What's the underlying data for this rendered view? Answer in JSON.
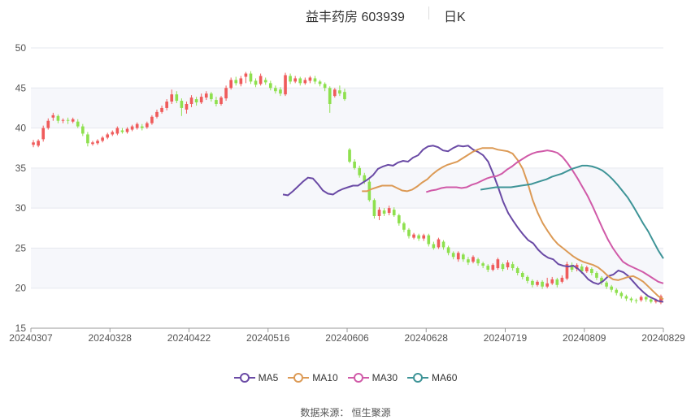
{
  "header": {
    "title": "益丰药房 603939",
    "period": "日K"
  },
  "source": "数据来源： 恒生聚源",
  "chart_data": {
    "type": "candlestick",
    "ylim": [
      15,
      50
    ],
    "yticks": [
      15,
      20,
      25,
      30,
      35,
      40,
      45,
      50
    ],
    "xticks": [
      "20240307",
      "20240328",
      "20240422",
      "20240516",
      "20240606",
      "20240628",
      "20240719",
      "20240809",
      "20240829"
    ],
    "colors": {
      "up": "#ef5b5b",
      "down": "#8ee04e",
      "ma5": "#6a4aa5",
      "ma10": "#dc9a55",
      "ma30": "#d05aa8",
      "ma60": "#3e9497"
    },
    "candles": [
      {
        "o": 37.9,
        "c": 38.2,
        "h": 38.5,
        "l": 37.6
      },
      {
        "o": 37.8,
        "c": 38.4,
        "h": 38.6,
        "l": 37.6
      },
      {
        "o": 38.6,
        "c": 40.0,
        "h": 40.3,
        "l": 38.3
      },
      {
        "o": 40.0,
        "c": 40.9,
        "h": 41.2,
        "l": 39.8
      },
      {
        "o": 41.3,
        "c": 41.6,
        "h": 41.9,
        "l": 40.9
      },
      {
        "o": 41.5,
        "c": 40.9,
        "h": 41.7,
        "l": 40.6
      },
      {
        "o": 40.9,
        "c": 41.0,
        "h": 41.2,
        "l": 40.6
      },
      {
        "o": 41.0,
        "c": 40.9,
        "h": 41.3,
        "l": 40.5
      },
      {
        "o": 40.8,
        "c": 41.1,
        "h": 41.3,
        "l": 40.6
      },
      {
        "o": 40.8,
        "c": 40.2,
        "h": 41.1,
        "l": 40.0
      },
      {
        "o": 40.2,
        "c": 39.3,
        "h": 40.5,
        "l": 39.0
      },
      {
        "o": 39.2,
        "c": 38.1,
        "h": 39.5,
        "l": 37.7
      },
      {
        "o": 38.0,
        "c": 38.2,
        "h": 38.4,
        "l": 37.8
      },
      {
        "o": 38.1,
        "c": 38.4,
        "h": 38.6,
        "l": 37.9
      },
      {
        "o": 38.4,
        "c": 38.8,
        "h": 39.0,
        "l": 38.2
      },
      {
        "o": 38.8,
        "c": 39.2,
        "h": 39.4,
        "l": 38.6
      },
      {
        "o": 39.2,
        "c": 39.5,
        "h": 39.7,
        "l": 39.0
      },
      {
        "o": 39.3,
        "c": 40.0,
        "h": 40.2,
        "l": 39.1
      },
      {
        "o": 39.7,
        "c": 39.5,
        "h": 40.0,
        "l": 39.3
      },
      {
        "o": 39.5,
        "c": 39.9,
        "h": 40.1,
        "l": 39.3
      },
      {
        "o": 39.8,
        "c": 40.2,
        "h": 40.4,
        "l": 39.6
      },
      {
        "o": 40.0,
        "c": 40.5,
        "h": 40.7,
        "l": 39.8
      },
      {
        "o": 40.2,
        "c": 40.0,
        "h": 40.5,
        "l": 39.7
      },
      {
        "o": 40.1,
        "c": 40.6,
        "h": 40.8,
        "l": 39.9
      },
      {
        "o": 40.6,
        "c": 41.4,
        "h": 41.6,
        "l": 40.4
      },
      {
        "o": 41.4,
        "c": 42.0,
        "h": 42.3,
        "l": 41.2
      },
      {
        "o": 42.0,
        "c": 42.5,
        "h": 42.8,
        "l": 41.8
      },
      {
        "o": 42.5,
        "c": 43.3,
        "h": 43.6,
        "l": 42.2
      },
      {
        "o": 43.3,
        "c": 44.2,
        "h": 44.8,
        "l": 43.0
      },
      {
        "o": 44.2,
        "c": 43.4,
        "h": 44.6,
        "l": 43.1
      },
      {
        "o": 43.4,
        "c": 42.5,
        "h": 43.7,
        "l": 41.5
      },
      {
        "o": 42.3,
        "c": 43.0,
        "h": 43.3,
        "l": 41.8
      },
      {
        "o": 43.0,
        "c": 43.8,
        "h": 44.1,
        "l": 42.6
      },
      {
        "o": 43.6,
        "c": 43.2,
        "h": 43.9,
        "l": 42.8
      },
      {
        "o": 43.2,
        "c": 43.9,
        "h": 44.3,
        "l": 43.0
      },
      {
        "o": 43.8,
        "c": 44.3,
        "h": 44.6,
        "l": 43.5
      },
      {
        "o": 44.3,
        "c": 43.6,
        "h": 44.5,
        "l": 43.3
      },
      {
        "o": 43.5,
        "c": 43.0,
        "h": 43.9,
        "l": 42.7
      },
      {
        "o": 43.0,
        "c": 43.8,
        "h": 44.0,
        "l": 42.8
      },
      {
        "o": 43.7,
        "c": 45.0,
        "h": 45.3,
        "l": 43.4
      },
      {
        "o": 45.0,
        "c": 46.0,
        "h": 46.3,
        "l": 44.8
      },
      {
        "o": 46.0,
        "c": 45.6,
        "h": 46.4,
        "l": 45.3
      },
      {
        "o": 45.5,
        "c": 46.2,
        "h": 46.5,
        "l": 45.2
      },
      {
        "o": 46.4,
        "c": 46.8,
        "h": 47.0,
        "l": 45.6
      },
      {
        "o": 46.8,
        "c": 45.8,
        "h": 47.1,
        "l": 45.5
      },
      {
        "o": 45.9,
        "c": 45.4,
        "h": 46.2,
        "l": 45.1
      },
      {
        "o": 45.5,
        "c": 46.5,
        "h": 46.8,
        "l": 45.3
      },
      {
        "o": 46.0,
        "c": 45.7,
        "h": 46.3,
        "l": 45.4
      },
      {
        "o": 45.6,
        "c": 45.0,
        "h": 45.9,
        "l": 44.7
      },
      {
        "o": 45.0,
        "c": 44.6,
        "h": 45.3,
        "l": 44.3
      },
      {
        "o": 44.8,
        "c": 44.3,
        "h": 45.1,
        "l": 44.0
      },
      {
        "o": 44.2,
        "c": 46.6,
        "h": 46.9,
        "l": 44.0
      },
      {
        "o": 46.5,
        "c": 45.8,
        "h": 46.8,
        "l": 45.5
      },
      {
        "o": 45.8,
        "c": 46.2,
        "h": 46.5,
        "l": 45.6
      },
      {
        "o": 46.2,
        "c": 45.6,
        "h": 46.4,
        "l": 45.3
      },
      {
        "o": 45.6,
        "c": 46.0,
        "h": 46.3,
        "l": 45.4
      },
      {
        "o": 45.9,
        "c": 46.3,
        "h": 46.5,
        "l": 45.6
      },
      {
        "o": 46.2,
        "c": 45.8,
        "h": 46.5,
        "l": 45.5
      },
      {
        "o": 45.8,
        "c": 45.5,
        "h": 46.0,
        "l": 45.2
      },
      {
        "o": 45.5,
        "c": 45.0,
        "h": 45.7,
        "l": 44.6
      },
      {
        "o": 45.0,
        "c": 43.0,
        "h": 45.2,
        "l": 41.9
      },
      {
        "o": 44.0,
        "c": 44.8,
        "h": 45.0,
        "l": 43.8
      },
      {
        "o": 44.7,
        "c": 44.3,
        "h": 45.3,
        "l": 44.0
      },
      {
        "o": 44.5,
        "c": 43.6,
        "h": 44.9,
        "l": 43.4
      },
      {
        "o": 37.3,
        "c": 35.8,
        "h": 37.5,
        "l": 35.6
      },
      {
        "o": 35.8,
        "c": 35.0,
        "h": 36.1,
        "l": 34.8
      },
      {
        "o": 35.0,
        "c": 34.1,
        "h": 35.3,
        "l": 33.8
      },
      {
        "o": 34.1,
        "c": 33.3,
        "h": 34.4,
        "l": 33.0
      },
      {
        "o": 33.3,
        "c": 31.0,
        "h": 33.6,
        "l": 30.8
      },
      {
        "o": 31.0,
        "c": 29.0,
        "h": 31.2,
        "l": 28.7
      },
      {
        "o": 29.0,
        "c": 29.8,
        "h": 30.1,
        "l": 28.5
      },
      {
        "o": 29.7,
        "c": 29.3,
        "h": 30.0,
        "l": 29.0
      },
      {
        "o": 29.4,
        "c": 30.0,
        "h": 30.3,
        "l": 29.1
      },
      {
        "o": 29.8,
        "c": 29.1,
        "h": 30.1,
        "l": 28.9
      },
      {
        "o": 29.1,
        "c": 28.1,
        "h": 29.3,
        "l": 27.8
      },
      {
        "o": 28.1,
        "c": 27.3,
        "h": 28.3,
        "l": 27.0
      },
      {
        "o": 27.3,
        "c": 26.5,
        "h": 27.5,
        "l": 26.2
      },
      {
        "o": 26.3,
        "c": 26.7,
        "h": 26.9,
        "l": 26.1
      },
      {
        "o": 26.6,
        "c": 26.2,
        "h": 26.8,
        "l": 25.9
      },
      {
        "o": 26.2,
        "c": 26.6,
        "h": 26.8,
        "l": 25.9
      },
      {
        "o": 26.6,
        "c": 25.5,
        "h": 26.8,
        "l": 25.2
      },
      {
        "o": 25.5,
        "c": 25.0,
        "h": 25.8,
        "l": 24.8
      },
      {
        "o": 25.1,
        "c": 26.1,
        "h": 26.3,
        "l": 24.9
      },
      {
        "o": 25.8,
        "c": 25.1,
        "h": 26.0,
        "l": 24.8
      },
      {
        "o": 25.1,
        "c": 24.4,
        "h": 25.3,
        "l": 24.1
      },
      {
        "o": 24.4,
        "c": 23.9,
        "h": 24.6,
        "l": 23.6
      },
      {
        "o": 23.6,
        "c": 24.4,
        "h": 24.6,
        "l": 23.3
      },
      {
        "o": 24.2,
        "c": 23.6,
        "h": 24.4,
        "l": 23.3
      },
      {
        "o": 23.6,
        "c": 23.2,
        "h": 23.9,
        "l": 22.9
      },
      {
        "o": 23.3,
        "c": 23.9,
        "h": 24.1,
        "l": 23.1
      },
      {
        "o": 23.6,
        "c": 23.1,
        "h": 23.8,
        "l": 22.8
      },
      {
        "o": 23.1,
        "c": 22.8,
        "h": 23.3,
        "l": 22.5
      },
      {
        "o": 22.8,
        "c": 22.3,
        "h": 23.0,
        "l": 22.0
      },
      {
        "o": 22.3,
        "c": 22.9,
        "h": 23.1,
        "l": 22.1
      },
      {
        "o": 22.5,
        "c": 23.6,
        "h": 23.8,
        "l": 22.3
      },
      {
        "o": 23.0,
        "c": 22.4,
        "h": 23.2,
        "l": 22.1
      },
      {
        "o": 22.6,
        "c": 23.2,
        "h": 23.5,
        "l": 22.3
      },
      {
        "o": 23.0,
        "c": 22.5,
        "h": 23.3,
        "l": 22.2
      },
      {
        "o": 22.5,
        "c": 21.9,
        "h": 22.7,
        "l": 21.6
      },
      {
        "o": 21.9,
        "c": 21.4,
        "h": 22.1,
        "l": 21.1
      },
      {
        "o": 21.4,
        "c": 20.9,
        "h": 21.6,
        "l": 20.6
      },
      {
        "o": 20.9,
        "c": 20.4,
        "h": 21.1,
        "l": 20.1
      },
      {
        "o": 20.4,
        "c": 20.8,
        "h": 21.0,
        "l": 20.2
      },
      {
        "o": 20.8,
        "c": 20.2,
        "h": 21.0,
        "l": 19.9
      },
      {
        "o": 20.2,
        "c": 20.6,
        "h": 21.3,
        "l": 20.0
      },
      {
        "o": 20.6,
        "c": 21.1,
        "h": 21.4,
        "l": 20.4
      },
      {
        "o": 21.1,
        "c": 20.4,
        "h": 21.3,
        "l": 20.1
      },
      {
        "o": 20.8,
        "c": 21.3,
        "h": 21.6,
        "l": 20.6
      },
      {
        "o": 21.2,
        "c": 23.0,
        "h": 23.3,
        "l": 21.0
      },
      {
        "o": 22.9,
        "c": 22.3,
        "h": 23.2,
        "l": 22.0
      },
      {
        "o": 22.4,
        "c": 22.9,
        "h": 23.1,
        "l": 22.1
      },
      {
        "o": 22.7,
        "c": 22.1,
        "h": 23.0,
        "l": 21.8
      },
      {
        "o": 22.1,
        "c": 22.6,
        "h": 22.8,
        "l": 21.9
      },
      {
        "o": 22.4,
        "c": 21.9,
        "h": 22.6,
        "l": 21.6
      },
      {
        "o": 21.9,
        "c": 21.3,
        "h": 22.1,
        "l": 21.0
      },
      {
        "o": 21.3,
        "c": 20.7,
        "h": 21.5,
        "l": 20.4
      },
      {
        "o": 20.7,
        "c": 20.2,
        "h": 20.9,
        "l": 19.9
      },
      {
        "o": 20.2,
        "c": 19.8,
        "h": 20.4,
        "l": 19.5
      },
      {
        "o": 19.8,
        "c": 19.4,
        "h": 20.0,
        "l": 19.1
      },
      {
        "o": 19.4,
        "c": 19.0,
        "h": 19.6,
        "l": 18.7
      },
      {
        "o": 19.0,
        "c": 18.7,
        "h": 19.2,
        "l": 18.4
      },
      {
        "o": 18.7,
        "c": 18.5,
        "h": 18.9,
        "l": 18.2
      },
      {
        "o": 18.5,
        "c": 18.4,
        "h": 18.7,
        "l": 18.1
      },
      {
        "o": 18.5,
        "c": 18.9,
        "h": 19.1,
        "l": 18.3
      },
      {
        "o": 18.9,
        "c": 18.6,
        "h": 19.0,
        "l": 18.3
      },
      {
        "o": 18.6,
        "c": 18.3,
        "h": 18.8,
        "l": 18.1
      },
      {
        "o": 18.3,
        "c": 18.5,
        "h": 18.7,
        "l": 18.1
      },
      {
        "o": 18.2,
        "c": 19.0,
        "h": 19.2,
        "l": 18.0
      }
    ],
    "series": [
      {
        "name": "MA5",
        "color": "#6a4aa5",
        "values": [
          31.7,
          31.6,
          32.1,
          32.7,
          33.3,
          33.8,
          33.7,
          33.0,
          32.2,
          31.8,
          31.7,
          32.1,
          32.4,
          32.6,
          32.8,
          32.8,
          33.2,
          33.6,
          34.1,
          34.9,
          35.2,
          35.4,
          35.3,
          35.7,
          35.9,
          35.8,
          36.3,
          36.6,
          37.3,
          37.7,
          37.8,
          37.6,
          37.2,
          37.1,
          37.5,
          37.8,
          37.7,
          37.8,
          37.3,
          37.0,
          36.6,
          35.8,
          34.3,
          32.6,
          30.8,
          29.4,
          28.4,
          27.5,
          26.7,
          26.0,
          25.6,
          24.8,
          24.2,
          23.8,
          23.6,
          23.0,
          22.8,
          22.7,
          22.8,
          22.4,
          21.8,
          21.1,
          20.7,
          20.5,
          20.9,
          21.5,
          21.7,
          22.2,
          22.0,
          21.5,
          20.8,
          20.1,
          19.5,
          19.0,
          18.7,
          18.4,
          18.3
        ]
      },
      {
        "name": "MA10",
        "color": "#dc9a55",
        "values": [
          32.1,
          32.1,
          32.4,
          32.6,
          32.8,
          32.8,
          32.8,
          32.5,
          32.2,
          32.1,
          32.3,
          32.7,
          33.2,
          33.6,
          34.2,
          34.7,
          35.1,
          35.4,
          35.6,
          35.8,
          36.2,
          36.6,
          37.0,
          37.3,
          37.5,
          37.5,
          37.5,
          37.3,
          37.2,
          37.1,
          36.8,
          36.0,
          34.9,
          33.1,
          31.0,
          29.4,
          28.1,
          27.1,
          26.2,
          25.5,
          25.0,
          24.5,
          24.0,
          23.6,
          23.3,
          23.1,
          22.9,
          22.6,
          22.1,
          21.5,
          21.1,
          21.0,
          21.2,
          21.4,
          21.5,
          21.2,
          20.8,
          20.2,
          19.6,
          19.0,
          18.6
        ]
      },
      {
        "name": "MA30",
        "color": "#d05aa8",
        "values": [
          32.0,
          32.2,
          32.3,
          32.5,
          32.6,
          32.6,
          32.6,
          32.5,
          32.6,
          32.9,
          33.1,
          33.4,
          33.7,
          33.9,
          34.0,
          34.3,
          34.8,
          35.2,
          35.7,
          36.1,
          36.5,
          36.8,
          37.0,
          37.1,
          37.2,
          37.1,
          36.9,
          36.4,
          35.6,
          34.7,
          33.7,
          32.6,
          31.5,
          30.2,
          28.8,
          27.4,
          26.1,
          25.0,
          24.1,
          23.3,
          22.9,
          22.6,
          22.3,
          22.0,
          21.6,
          21.2,
          20.8,
          20.6
        ]
      },
      {
        "name": "MA60",
        "color": "#3e9497",
        "values": [
          32.3,
          32.4,
          32.5,
          32.6,
          32.6,
          32.6,
          32.6,
          32.7,
          32.8,
          32.9,
          33.0,
          33.2,
          33.4,
          33.6,
          33.9,
          34.1,
          34.3,
          34.6,
          34.9,
          35.1,
          35.3,
          35.3,
          35.2,
          35.0,
          34.7,
          34.2,
          33.6,
          32.9,
          32.1,
          31.3,
          30.3,
          29.2,
          28.1,
          27.1,
          25.9,
          24.7,
          23.7
        ]
      }
    ]
  }
}
